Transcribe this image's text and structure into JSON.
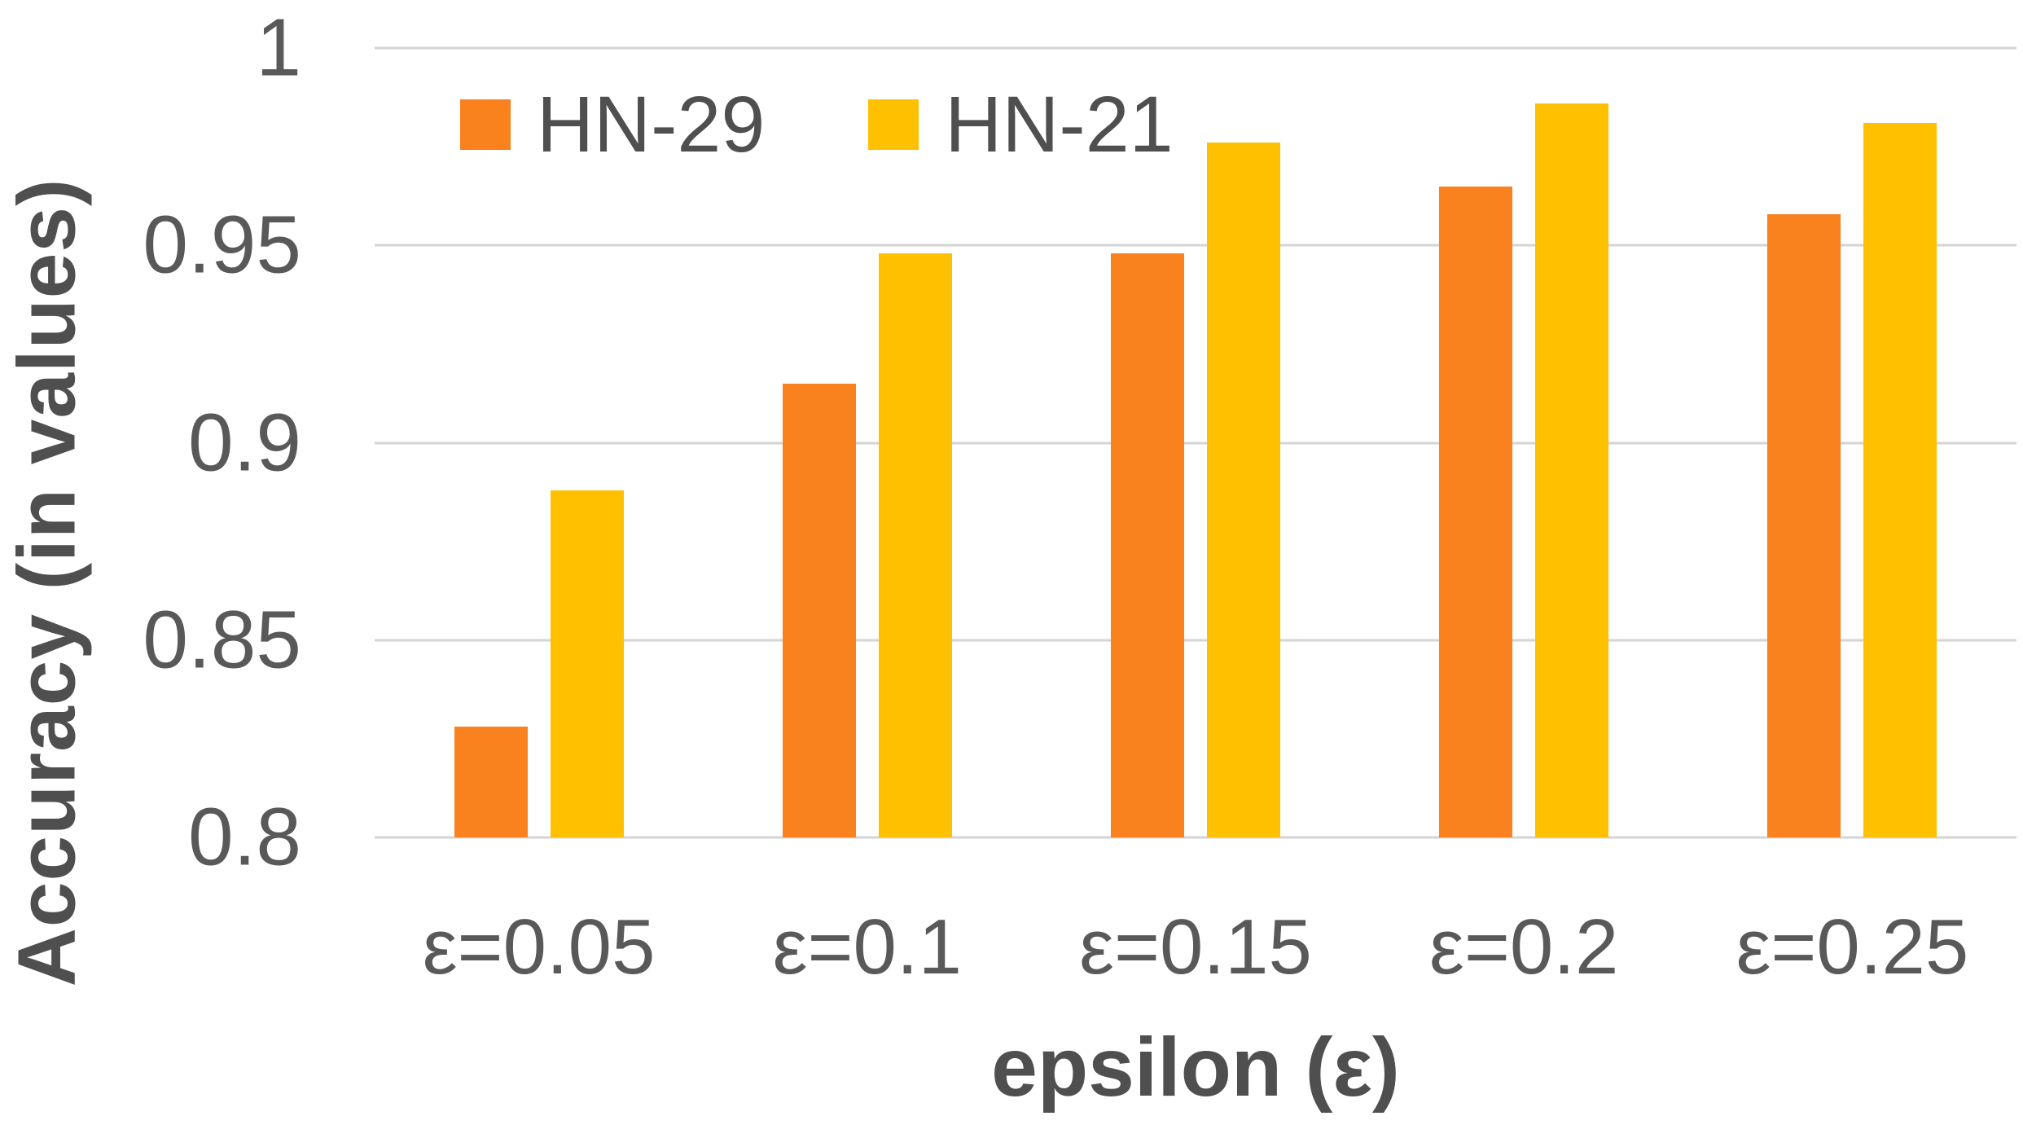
{
  "colors": {
    "background": "#ffffff",
    "gridline": "#d4d4d4",
    "text": "#595959",
    "title_text": "#4f4f4f",
    "hn29_orange": "#F9811E",
    "hn21_gold": "#FFC000"
  },
  "chart_data": {
    "type": "bar",
    "title": "",
    "xlabel": "epsilon (ε)",
    "ylabel": "Accuracy (in values)",
    "categories": [
      "ε=0.05",
      "ε=0.1",
      "ε=0.15",
      "ε=0.2",
      "ε=0.25"
    ],
    "series": [
      {
        "name": "HN-29",
        "color": "#F9811E",
        "values": [
          0.828,
          0.915,
          0.948,
          0.965,
          0.958
        ]
      },
      {
        "name": "HN-21",
        "color": "#FFC000",
        "values": [
          0.888,
          0.948,
          0.976,
          0.986,
          0.981
        ]
      }
    ],
    "ylim": [
      0.8,
      1.0
    ],
    "yticks": [
      {
        "label": "1",
        "value": 1.0
      },
      {
        "label": "0.95",
        "value": 0.95
      },
      {
        "label": "0.9",
        "value": 0.9
      },
      {
        "label": "0.85",
        "value": 0.85
      },
      {
        "label": "0.8",
        "value": 0.8
      }
    ],
    "grid": true,
    "legend_position": "top-inside"
  }
}
